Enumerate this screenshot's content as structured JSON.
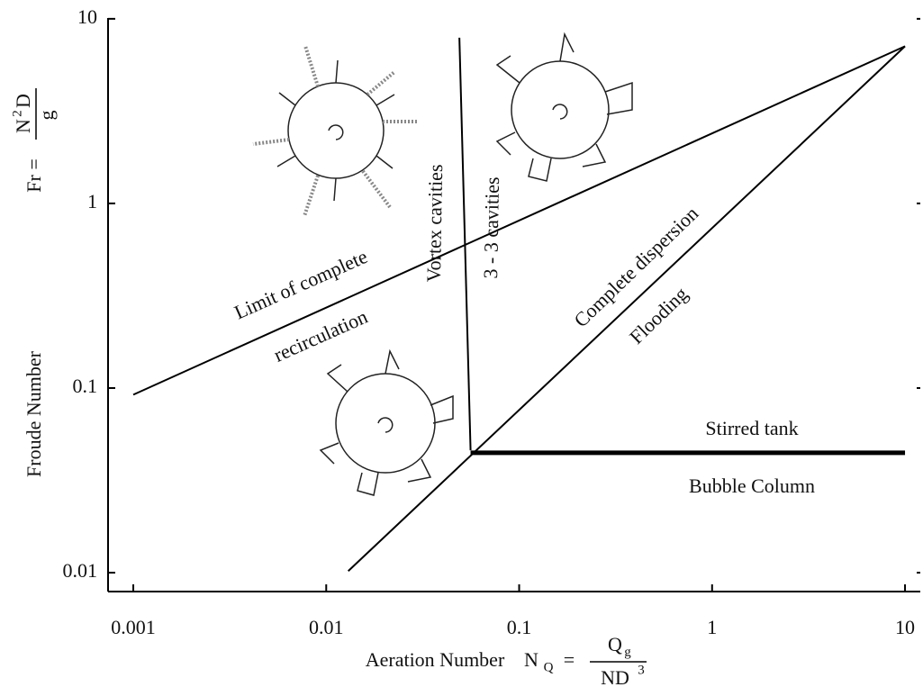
{
  "chart_data": {
    "type": "line",
    "log_x": true,
    "log_y": true,
    "xlim": [
      0.00074,
      12
    ],
    "ylim": [
      0.0079,
      10.1
    ],
    "xticks": [
      0.001,
      0.01,
      0.1,
      1,
      10
    ],
    "yticks": [
      0.01,
      0.1,
      1,
      10
    ],
    "xlabel": "Aeration Number",
    "x_formula": {
      "lhs": "N",
      "lhs_sub": "Q",
      "eq": "=",
      "numerator": "Q",
      "numerator_sub": "g",
      "denominator": "ND",
      "denominator_sup": "3"
    },
    "ylabel": "Froude Number",
    "y_formula": {
      "lhs": "Fr =",
      "numerator": "N",
      "numerator_sup": "2",
      "numerator_rest": "D",
      "denominator": "g"
    },
    "series": [
      {
        "color": "#000000",
        "line_width": 2,
        "x": [
          0.001,
          10
        ],
        "values": [
          0.092,
          7.1
        ]
      },
      {
        "color": "#000000",
        "line_width": 2,
        "x": [
          0.013,
          10
        ],
        "values": [
          0.0102,
          7.1
        ]
      },
      {
        "color": "#000000",
        "line_width": 2,
        "x": [
          0.049,
          0.056
        ],
        "values": [
          7.9,
          0.046
        ]
      },
      {
        "color": "#000000",
        "line_width": 5,
        "x": [
          0.056,
          10
        ],
        "values": [
          0.0446,
          0.0446
        ]
      }
    ],
    "annotations": [
      "Limit of complete",
      "recirculation",
      "Vortex cavities",
      "3 - 3 cavities",
      "Complete dispersion",
      "Flooding",
      "Stirred tank",
      "Bubble Column"
    ]
  }
}
